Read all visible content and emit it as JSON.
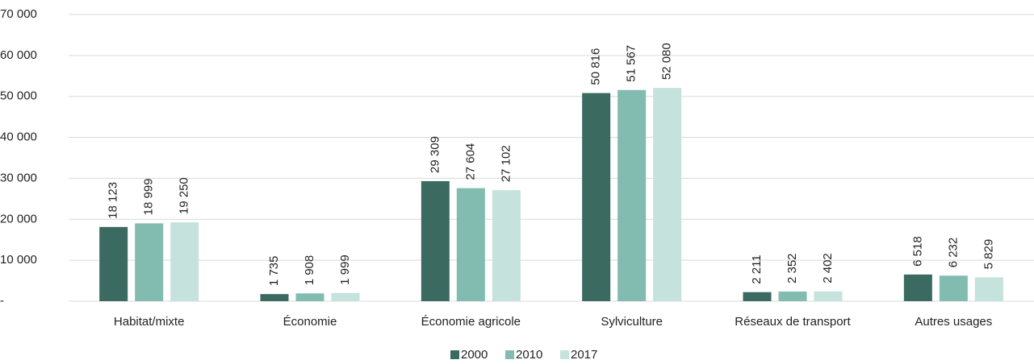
{
  "chart_data": {
    "type": "bar",
    "categories": [
      "Habitat/mixte",
      "Économie",
      "Économie agricole",
      "Sylviculture",
      "Réseaux de transport",
      "Autres usages"
    ],
    "series": [
      {
        "name": "2000",
        "color": "#3a6a60",
        "values": [
          18123,
          1735,
          29309,
          50816,
          2211,
          6518
        ],
        "value_labels": [
          "18 123",
          "1 735",
          "29 309",
          "50 816",
          "2 211",
          "6 518"
        ]
      },
      {
        "name": "2010",
        "color": "#82bbb0",
        "values": [
          18999,
          1908,
          27604,
          51567,
          2352,
          6232
        ],
        "value_labels": [
          "18 999",
          "1 908",
          "27 604",
          "51 567",
          "2 352",
          "6 232"
        ]
      },
      {
        "name": "2017",
        "color": "#c5e2dc",
        "values": [
          19250,
          1999,
          27102,
          52080,
          2402,
          5829
        ],
        "value_labels": [
          "19 250",
          "1 999",
          "27 102",
          "52 080",
          "2 402",
          "5 829"
        ]
      }
    ],
    "ylim": [
      0,
      70000
    ],
    "yticks": [
      {
        "value": 0,
        "label": "-"
      },
      {
        "value": 10000,
        "label": "10 000"
      },
      {
        "value": 20000,
        "label": "20 000"
      },
      {
        "value": 30000,
        "label": "30 000"
      },
      {
        "value": 40000,
        "label": "40 000"
      },
      {
        "value": 50000,
        "label": "50 000"
      },
      {
        "value": 60000,
        "label": "60 000"
      },
      {
        "value": 70000,
        "label": "70 000"
      }
    ],
    "grid": true,
    "legend": "bottom"
  }
}
